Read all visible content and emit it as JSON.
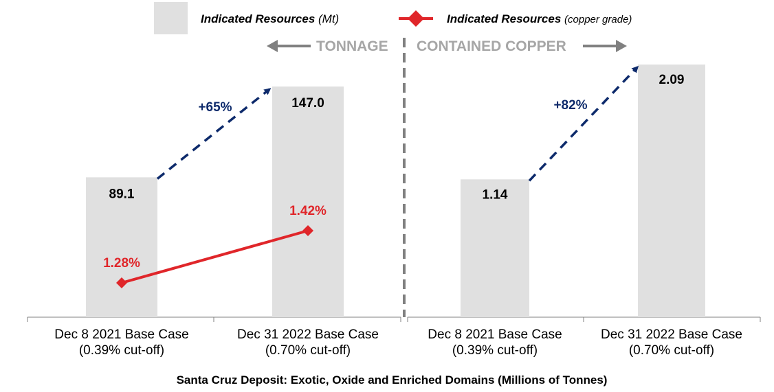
{
  "legend": {
    "bar_label_bold": "Indicated Resources",
    "bar_label_unit": "(Mt)",
    "line_label_bold": "Indicated Resources",
    "line_label_unit": "(copper grade)"
  },
  "section_labels": {
    "left": "TONNAGE",
    "right": "CONTAINED COPPER"
  },
  "footer_title": "Santa Cruz Deposit: Exotic, Oxide and Enriched Domains (Millions of Tonnes)",
  "colors": {
    "bar": "#e0e0e0",
    "grade_line": "#e0262a",
    "growth_arrow": "#0d2a6b",
    "divider": "#808080",
    "section_text": "#a6a6a6"
  },
  "chart_data": [
    {
      "type": "bar",
      "panel": "tonnage",
      "categories": [
        [
          "Dec 8 2021 Base Case",
          "(0.39% cut-off)"
        ],
        [
          "Dec 31 2022 Base Case",
          "(0.70% cut-off)"
        ]
      ],
      "series": [
        {
          "name": "Indicated Resources (Mt)",
          "values": [
            89.1,
            147.0
          ],
          "labels": [
            "89.1",
            "147.0"
          ]
        },
        {
          "name": "Indicated Resources (copper grade)",
          "type": "line",
          "values": [
            1.28,
            1.42
          ],
          "labels": [
            "1.28%",
            "1.42%"
          ]
        }
      ],
      "growth_annotation": "+65%"
    },
    {
      "type": "bar",
      "panel": "contained_copper",
      "categories": [
        [
          "Dec 8 2021 Base Case",
          "(0.39% cut-off)"
        ],
        [
          "Dec 31 2022 Base Case",
          "(0.70% cut-off)"
        ]
      ],
      "series": [
        {
          "name": "Contained copper",
          "values": [
            1.14,
            2.09
          ],
          "labels": [
            "1.14",
            "2.09"
          ]
        }
      ],
      "growth_annotation": "+82%"
    }
  ]
}
